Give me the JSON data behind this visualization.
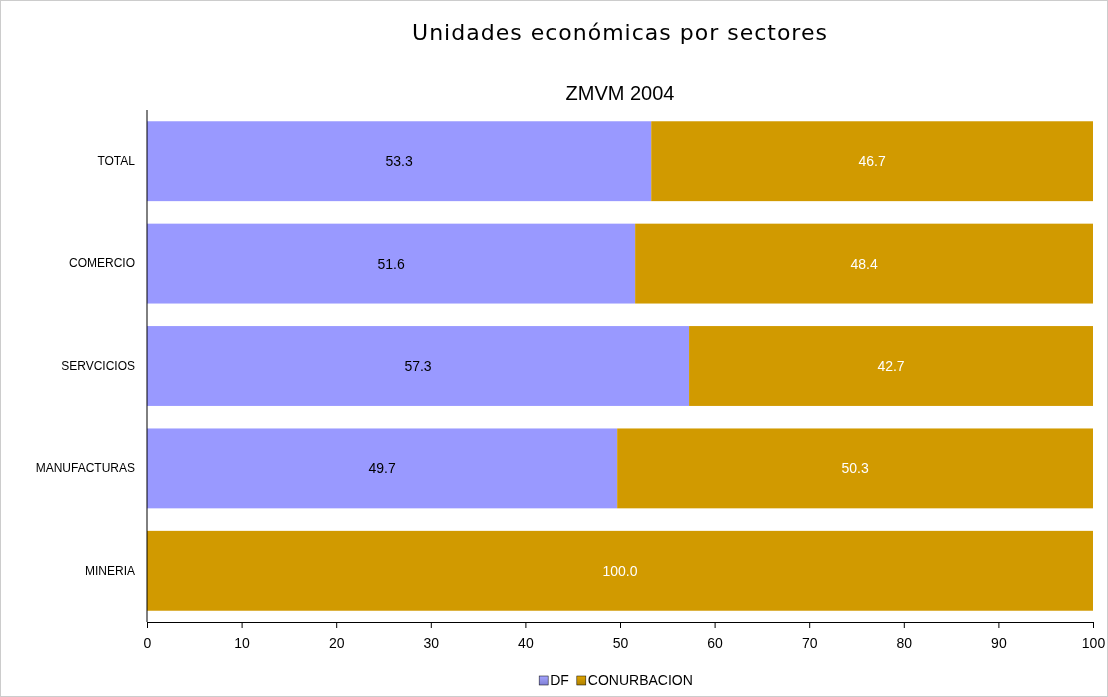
{
  "chart_data": {
    "type": "bar",
    "orientation": "horizontal",
    "stacked": true,
    "title": "Unidades económicas por sectores",
    "subtitle": "ZMVM 2004",
    "categories": [
      "TOTAL",
      "COMERCIO",
      "SERVCICIOS",
      "MANUFACTURAS",
      "MINERIA"
    ],
    "series": [
      {
        "name": "DF",
        "color": "#9999ff",
        "values": [
          53.3,
          51.6,
          57.3,
          49.7,
          null
        ],
        "value_labels": [
          "53.3",
          "51.6",
          "57.3",
          "49.7",
          null
        ]
      },
      {
        "name": "CONURBACION",
        "color": "#d19a00",
        "values": [
          46.7,
          48.4,
          42.7,
          50.3,
          100.0
        ],
        "value_labels": [
          "46.7",
          "48.4",
          "42.7",
          "50.3",
          "100.0"
        ]
      }
    ],
    "xlim": [
      0,
      100
    ],
    "xticks": [
      0,
      10,
      20,
      30,
      40,
      50,
      60,
      70,
      80,
      90,
      100
    ],
    "grid": false,
    "legend": "bottom"
  }
}
